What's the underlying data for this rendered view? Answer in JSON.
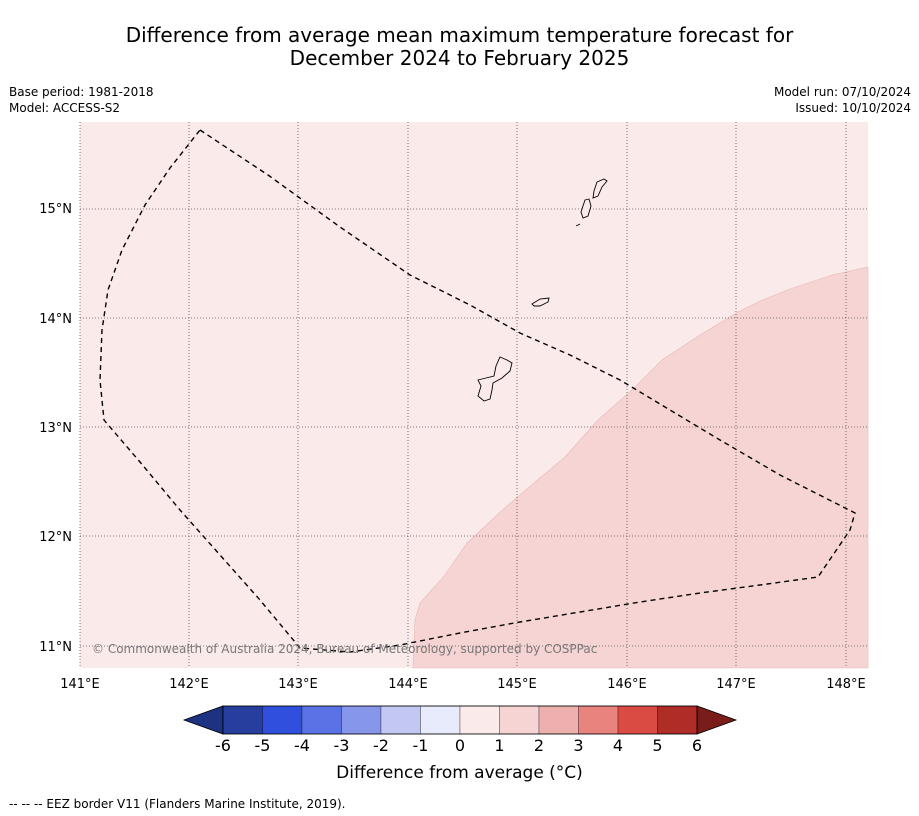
{
  "title_line1": "Difference from average mean maximum temperature forecast for",
  "title_line2": "December 2024 to February 2025",
  "base_period": "Base period: 1981-2018",
  "model": "Model: ACCESS-S2",
  "model_run": "Model run: 07/10/2024",
  "issued": "Issued: 10/10/2024",
  "copyright": "© Commonwealth of Australia 2024, Bureau of Meteorology, supported by COSPPac",
  "lat_labels": [
    "15°N",
    "14°N",
    "13°N",
    "12°N",
    "11°N"
  ],
  "lon_labels": [
    "141°E",
    "142°E",
    "143°E",
    "144°E",
    "145°E",
    "146°E",
    "147°E",
    "148°E"
  ],
  "colorbar": {
    "ticks": [
      "-6",
      "-5",
      "-4",
      "-3",
      "-2",
      "-1",
      "0",
      "1",
      "2",
      "3",
      "4",
      "5",
      "6"
    ],
    "colors": [
      "#283e9e",
      "#2f4fdc",
      "#5a72e5",
      "#8596eb",
      "#c2c8f2",
      "#e8ebfb",
      "#fbeaea",
      "#f5d4d3",
      "#eeb0ae",
      "#e8837e",
      "#d94b43",
      "#b02c26"
    ],
    "under_color": "#1e3282",
    "over_color": "#7a1d1a",
    "label": "Difference from average (°C)"
  },
  "regions": {
    "low_anomaly_color": "#fbeaea",
    "high_anomaly_color": "#f5d4d3"
  },
  "footnote": "--  --  -- EEZ border V11 (Flanders Marine Institute, 2019)."
}
